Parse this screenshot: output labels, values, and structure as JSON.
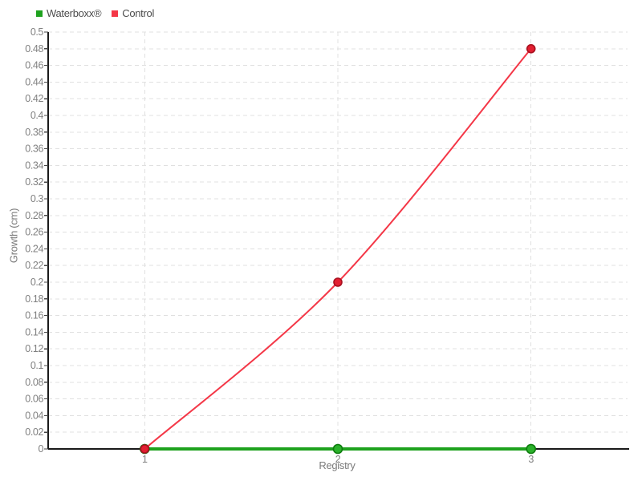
{
  "chart_data": {
    "type": "line",
    "categories": [
      "1",
      "2",
      "3"
    ],
    "series": [
      {
        "name": "Waterboxx®",
        "values": [
          0,
          0,
          0
        ],
        "color": "#1ea21e",
        "point_fill": "#2bb12b",
        "point_stroke": "#0d7c0d",
        "line_width": 4,
        "point_radius": 5.5
      },
      {
        "name": "Control",
        "values": [
          0,
          0.2,
          0.48
        ],
        "color": "#f43747",
        "point_fill": "#e31f31",
        "point_stroke": "#a8101f",
        "line_width": 2,
        "point_radius": 5
      }
    ],
    "xlabel": "Registry",
    "ylabel": "Growth (cm)",
    "ylim": [
      0,
      0.5
    ],
    "ytick_step": 0.02,
    "grid": "dashed",
    "grid_color": "#e0e0e0",
    "axis_color": "#1a1a1a",
    "tick_label_color": "#808080",
    "legend_position": "top-left",
    "smooth": true,
    "background": "#ffffff"
  }
}
